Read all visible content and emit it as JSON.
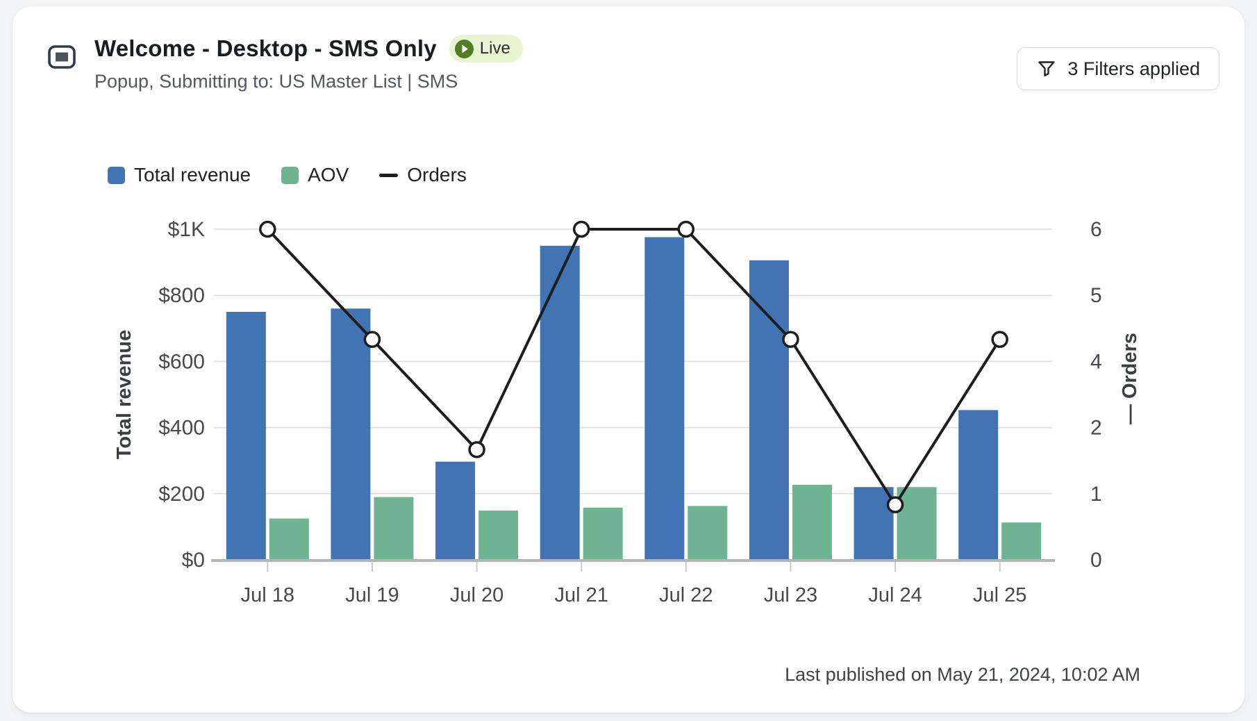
{
  "card": {
    "title": "Welcome - Desktop - SMS Only",
    "live_badge": "Live",
    "subtitle": "Popup, Submitting to: US Master List | SMS",
    "filters_button": "3 Filters applied",
    "footer": "Last published on May 21, 2024, 10:02 AM"
  },
  "colors": {
    "page_background": "#f3f4f6",
    "card_background": "#ffffff",
    "bar_blue": "#4274b4",
    "bar_green": "#6fb492",
    "line_black": "#1b1d1f",
    "badge_background": "#e8f4d2",
    "badge_green": "#517e22",
    "gridline": "#dadce0",
    "axis_line": "#b2b5b9"
  },
  "chart_data": {
    "type": "bar",
    "subtype": "grouped bars with overlaid line (dual axis)",
    "categories": [
      "Jul 18",
      "Jul 19",
      "Jul 20",
      "Jul 21",
      "Jul 22",
      "Jul 23",
      "Jul 24",
      "Jul 25"
    ],
    "series": [
      {
        "name": "Total revenue",
        "type": "bar",
        "axis": "left",
        "color": "#4274b4",
        "values": [
          750,
          760,
          297,
          950,
          976,
          906,
          220,
          453
        ]
      },
      {
        "name": "AOV",
        "type": "bar",
        "axis": "left",
        "color": "#6fb492",
        "values": [
          125,
          190,
          149,
          158,
          163,
          227,
          220,
          113
        ]
      },
      {
        "name": "Orders",
        "type": "line",
        "axis": "right",
        "color": "#1b1d1f",
        "values": [
          6,
          4,
          2,
          6,
          6,
          4,
          1,
          4
        ]
      }
    ],
    "left_axis": {
      "title": "Total revenue",
      "min": 0,
      "max": 1000,
      "gridline_values": [
        0,
        200,
        400,
        600,
        800,
        1000
      ],
      "tick_labels": [
        "$0",
        "$200",
        "$400",
        "$600",
        "$800",
        "$1K"
      ]
    },
    "right_axis": {
      "title": "— Orders",
      "min": 0,
      "max": 6,
      "tick_labels": [
        "0",
        "1",
        "2",
        "4",
        "5",
        "6"
      ]
    },
    "legend_position": "top-left",
    "grid": true
  }
}
